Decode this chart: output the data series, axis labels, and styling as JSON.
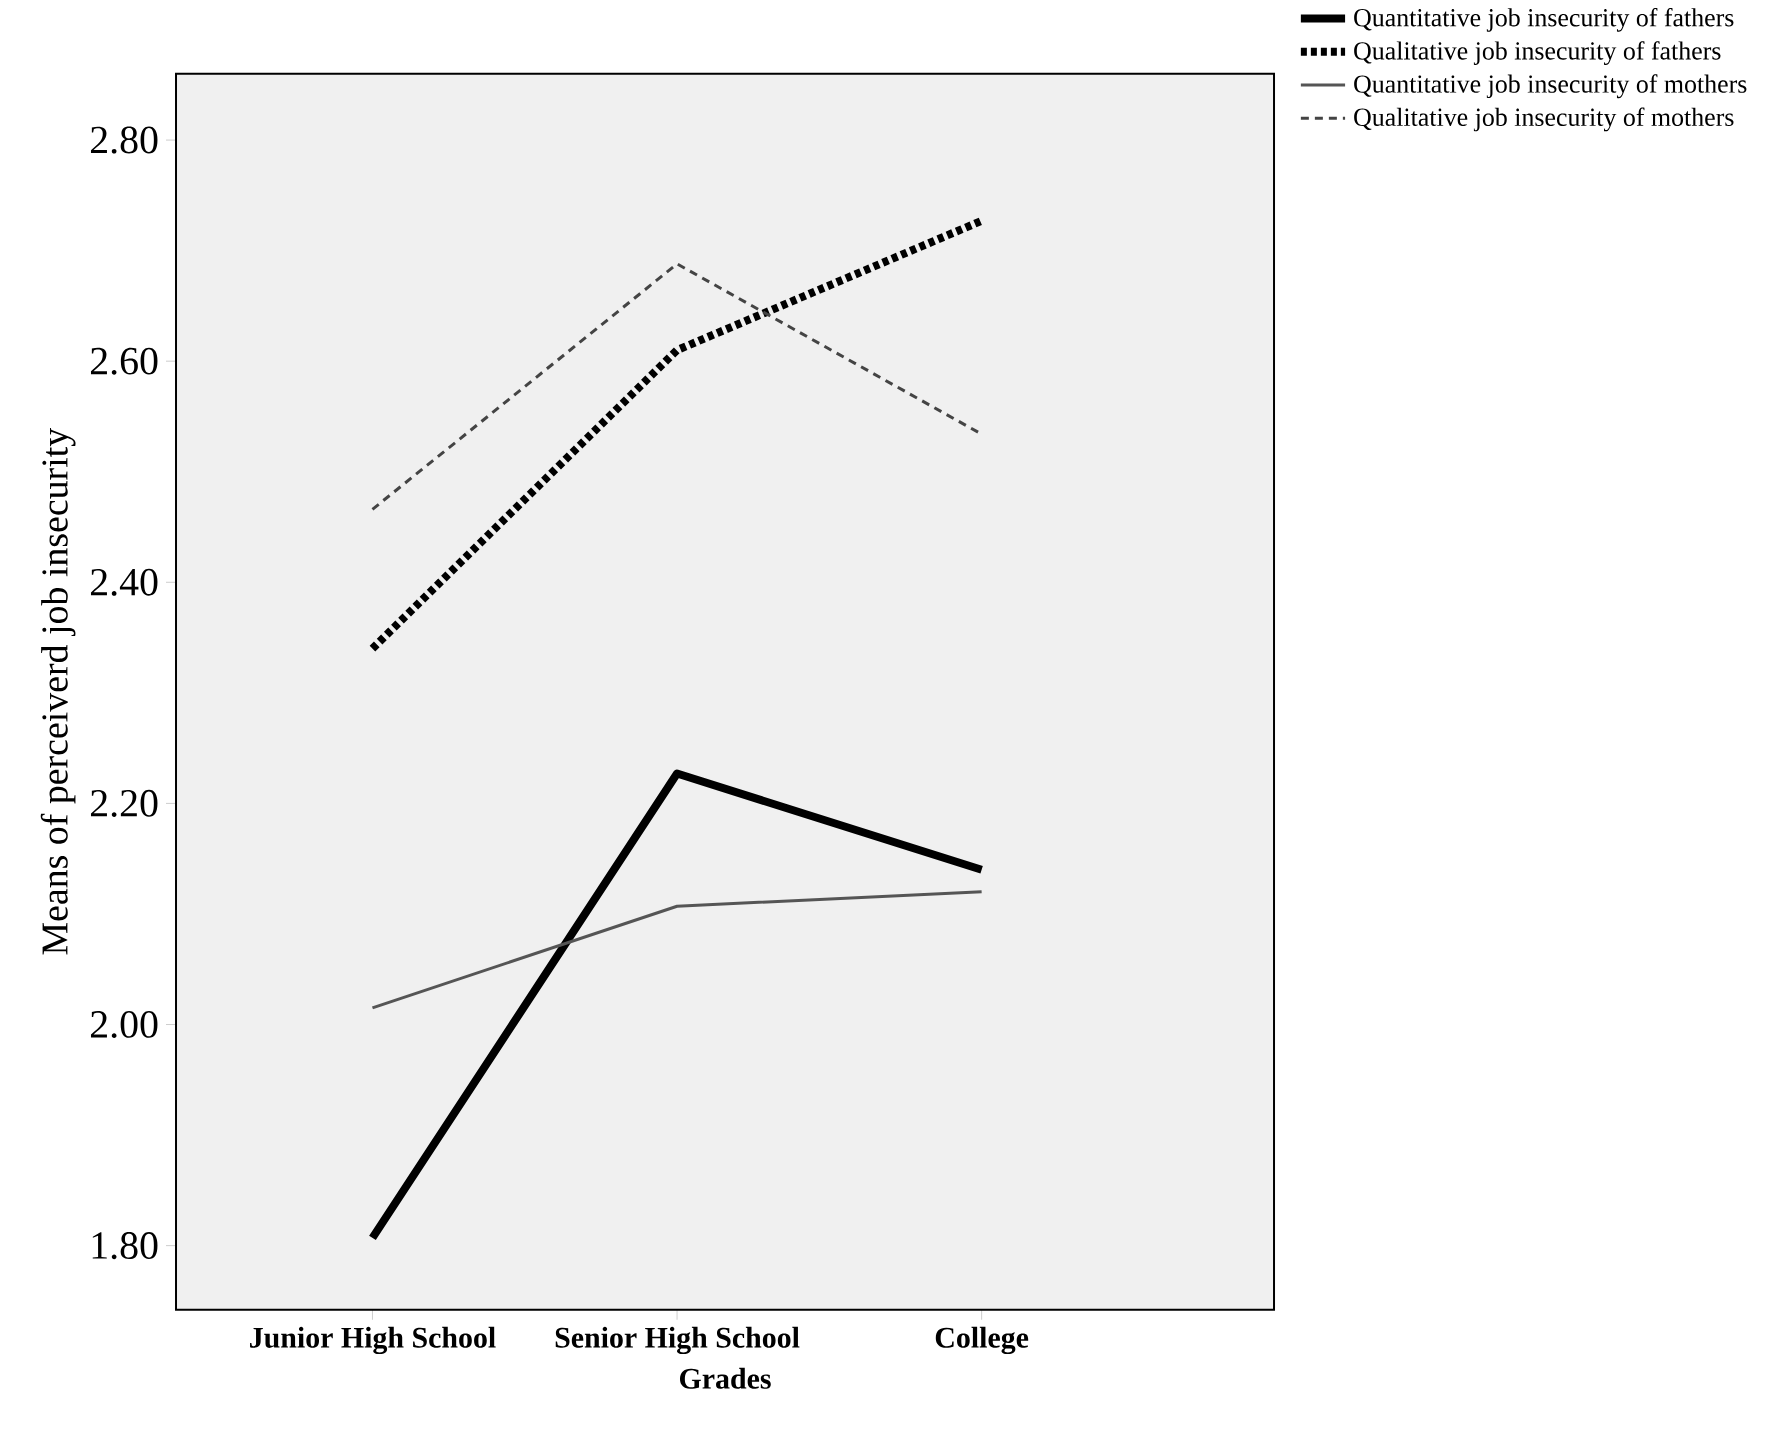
{
  "chart_data": {
    "type": "line",
    "xlabel": "Grades",
    "ylabel": "Means of perceiverd job insecurity",
    "categories": [
      "Junior High School",
      "Senior High School",
      "College"
    ],
    "series": [
      {
        "name": "Quantitative job insecurity of fathers",
        "color": "#000000",
        "line_style": "solid",
        "values": [
          1.807,
          2.227,
          2.14
        ]
      },
      {
        "name": "Qualitative job insecurity of fathers",
        "color": "#000000",
        "line_style": "dotted",
        "values": [
          2.34,
          2.61,
          2.727
        ]
      },
      {
        "name": "Quantitative job insecurity of mothers",
        "color": "#555555",
        "line_style": "solid",
        "values": [
          2.015,
          2.107,
          2.12
        ]
      },
      {
        "name": "Qualitative job insecurity of mothers",
        "color": "#444444",
        "line_style": "dashed",
        "values": [
          2.466,
          2.688,
          2.534
        ]
      }
    ],
    "ylim": [
      1.742,
      2.86
    ],
    "yticks": [
      {
        "value": 1.8,
        "label": "1.80"
      },
      {
        "value": 2.0,
        "label": "2.00"
      },
      {
        "value": 2.2,
        "label": "2.20"
      },
      {
        "value": 2.4,
        "label": "2.40"
      },
      {
        "value": 2.6,
        "label": "2.60"
      },
      {
        "value": 2.8,
        "label": "2.80"
      }
    ],
    "legend": "top right",
    "grid": false,
    "marker": "none"
  }
}
